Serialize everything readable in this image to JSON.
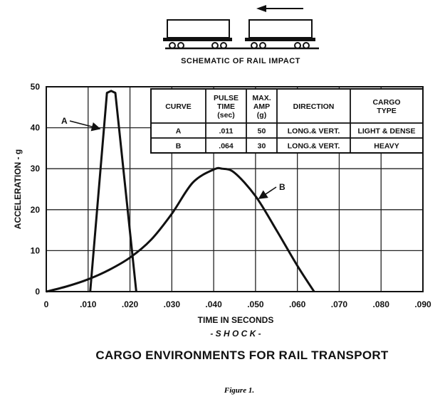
{
  "schematic": {
    "caption": "SCHEMATIC OF RAIL IMPACT",
    "arrow_icon": "arrow-left-icon"
  },
  "table": {
    "headers": [
      "CURVE",
      "PULSE\nTIME\n(sec)",
      "MAX.\nAMP\n(g)",
      "DIRECTION",
      "CARGO\nTYPE"
    ],
    "rows": [
      [
        "A",
        ".011",
        "50",
        "LONG.& VERT.",
        "LIGHT & DENSE"
      ],
      [
        "B",
        ".064",
        "30",
        "LONG.& VERT.",
        "HEAVY"
      ]
    ]
  },
  "chart_data": {
    "type": "line",
    "xlabel": "TIME IN SECONDS",
    "ylabel": "ACCELERATION - g",
    "subtitle": "- S H O C K -",
    "xlim": [
      0,
      0.09
    ],
    "ylim": [
      0,
      50
    ],
    "xticks": [
      {
        "v": 0,
        "label": "0"
      },
      {
        "v": 0.01,
        "label": ".010"
      },
      {
        "v": 0.02,
        "label": ".020"
      },
      {
        "v": 0.03,
        "label": ".030"
      },
      {
        "v": 0.04,
        "label": ".040"
      },
      {
        "v": 0.05,
        "label": ".050"
      },
      {
        "v": 0.06,
        "label": ".060"
      },
      {
        "v": 0.07,
        "label": ".070"
      },
      {
        "v": 0.08,
        "label": ".080"
      },
      {
        "v": 0.09,
        "label": ".090"
      }
    ],
    "yticks": [
      0,
      10,
      20,
      30,
      40,
      50
    ],
    "grid": true,
    "series": [
      {
        "name": "A",
        "x": [
          0.0105,
          0.0145,
          0.0155,
          0.0165,
          0.0215
        ],
        "y": [
          0,
          48.5,
          49,
          48.5,
          0
        ]
      },
      {
        "name": "B",
        "x": [
          0,
          0.005,
          0.01,
          0.015,
          0.02,
          0.025,
          0.03,
          0.035,
          0.04,
          0.042,
          0.045,
          0.05,
          0.055,
          0.06,
          0.064
        ],
        "y": [
          0,
          1.3,
          3.0,
          5.3,
          8.3,
          12.6,
          19.0,
          26.6,
          29.8,
          30,
          29.0,
          23.3,
          15.0,
          6.3,
          0
        ]
      }
    ],
    "annotations": [
      {
        "text": "A",
        "target_series": "A"
      },
      {
        "text": "B",
        "target_series": "B"
      }
    ]
  },
  "caption": {
    "title": "CARGO ENVIRONMENTS FOR RAIL TRANSPORT",
    "figure": "Figure 1."
  }
}
